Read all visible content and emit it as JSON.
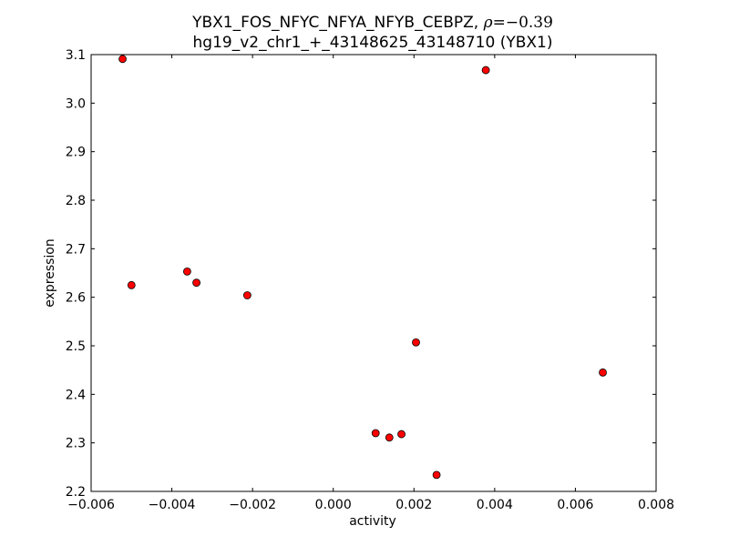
{
  "chart_data": {
    "type": "scatter",
    "title_line1_prefix": "YBX1_FOS_NFYC_NFYA_NFYB_CEBPZ, ",
    "title_rho_symbol": "ρ",
    "title_rho_value": "=−0.39",
    "title_line2": "hg19_v2_chr1_+_43148625_43148710 (YBX1)",
    "xlabel": "activity",
    "ylabel": "expression",
    "xlim": [
      -0.006,
      0.008
    ],
    "ylim": [
      2.2,
      3.1
    ],
    "x_ticks": [
      -0.006,
      -0.004,
      -0.002,
      0.0,
      0.002,
      0.004,
      0.006,
      0.008
    ],
    "x_tick_labels": [
      "−0.006",
      "−0.004",
      "−0.002",
      "0.000",
      "0.002",
      "0.004",
      "0.006",
      "0.008"
    ],
    "y_ticks": [
      2.2,
      2.3,
      2.4,
      2.5,
      2.6,
      2.7,
      2.8,
      2.9,
      3.0,
      3.1
    ],
    "y_tick_labels": [
      "2.2",
      "2.3",
      "2.4",
      "2.5",
      "2.6",
      "2.7",
      "2.8",
      "2.9",
      "3.0",
      "3.1"
    ],
    "grid": false,
    "marker_color": "#ff0000",
    "marker_edge_color": "#000000",
    "points": [
      {
        "x": -0.00522,
        "y": 3.091
      },
      {
        "x": -0.005,
        "y": 2.625
      },
      {
        "x": -0.00362,
        "y": 2.653
      },
      {
        "x": -0.00339,
        "y": 2.63
      },
      {
        "x": -0.00213,
        "y": 2.604
      },
      {
        "x": 0.00105,
        "y": 2.32
      },
      {
        "x": 0.00139,
        "y": 2.311
      },
      {
        "x": 0.00169,
        "y": 2.318
      },
      {
        "x": 0.00205,
        "y": 2.507
      },
      {
        "x": 0.00256,
        "y": 2.234
      },
      {
        "x": 0.00378,
        "y": 3.068
      },
      {
        "x": 0.00668,
        "y": 2.445
      }
    ]
  }
}
